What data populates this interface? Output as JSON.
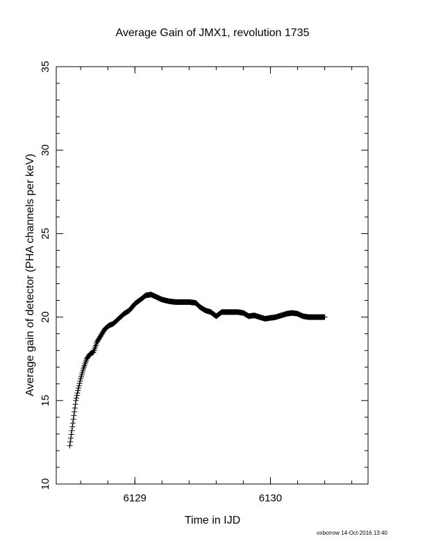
{
  "footer": "oxborrow 14-Oct-2016 13:40",
  "chart_data": {
    "type": "scatter",
    "marker": "plus",
    "title": "Average Gain of JMX1, revolution 1735",
    "xlabel": "Time in IJD",
    "ylabel": "Average gain of detector (PHA channels per keV)",
    "xlim": [
      6128.42,
      6130.72
    ],
    "ylim": [
      10,
      35
    ],
    "xticks": [
      6129,
      6130
    ],
    "xtick_labels": [
      "6129",
      "6130"
    ],
    "yticks": [
      10,
      15,
      20,
      25,
      30,
      35
    ],
    "ytick_labels": [
      "10",
      "15",
      "20",
      "25",
      "30",
      "35"
    ],
    "grid": false,
    "color": "#000000",
    "series": [
      {
        "x": [
          6128.52,
          6128.535,
          6128.55,
          6128.565,
          6128.58,
          6128.6,
          6128.62,
          6128.645,
          6128.67,
          6128.695,
          6128.72,
          6128.75,
          6128.78,
          6128.81,
          6128.84,
          6128.88,
          6128.92,
          6128.96,
          6129.0,
          6129.05,
          6129.08,
          6129.12,
          6129.16,
          6129.2,
          6129.25,
          6129.3,
          6129.35,
          6129.4,
          6129.45,
          6129.48,
          6129.52,
          6129.56,
          6129.6,
          6129.64,
          6129.68,
          6129.72,
          6129.76,
          6129.8,
          6129.84,
          6129.88,
          6129.92,
          6129.96,
          6130.0,
          6130.04,
          6130.08,
          6130.12,
          6130.16,
          6130.2,
          6130.24,
          6130.28,
          6130.32,
          6130.36,
          6130.4
        ],
        "y": [
          12.3,
          13.2,
          14.1,
          15.0,
          15.6,
          16.3,
          16.9,
          17.5,
          17.8,
          17.9,
          18.5,
          18.9,
          19.3,
          19.5,
          19.6,
          19.9,
          20.2,
          20.4,
          20.8,
          21.1,
          21.3,
          21.35,
          21.2,
          21.05,
          20.95,
          20.9,
          20.9,
          20.9,
          20.85,
          20.6,
          20.4,
          20.3,
          20.05,
          20.3,
          20.3,
          20.3,
          20.3,
          20.25,
          20.05,
          20.1,
          20.0,
          19.9,
          19.95,
          20.0,
          20.1,
          20.2,
          20.25,
          20.2,
          20.05,
          20.0,
          20.0,
          20.0,
          20.0
        ]
      }
    ]
  }
}
